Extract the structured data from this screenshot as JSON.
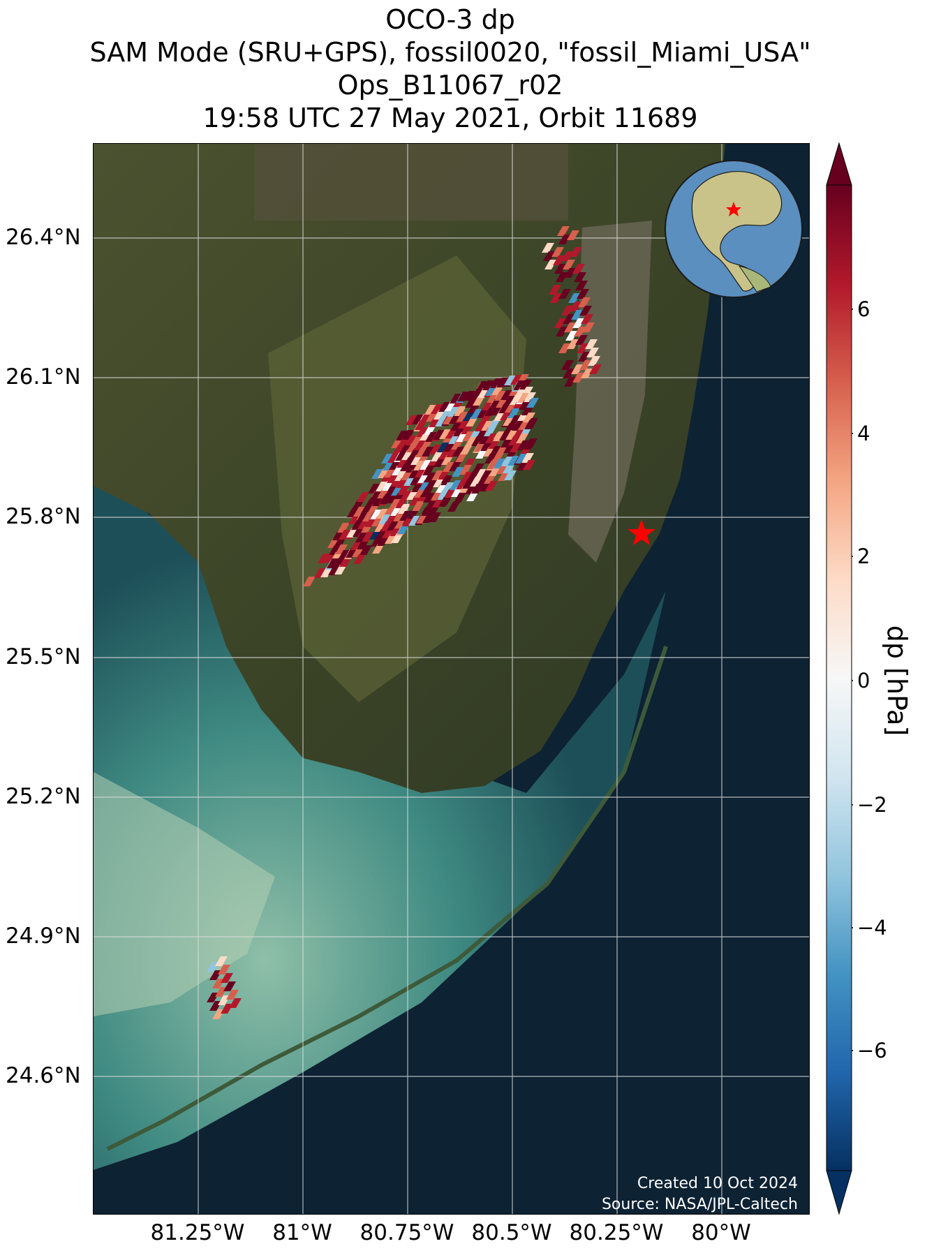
{
  "title": {
    "line1": "OCO-3 dp",
    "line2": "SAM Mode (SRU+GPS), fossil0020, \"fossil_Miami_USA\"",
    "line3": "Ops_B11067_r02",
    "line4": "19:58 UTC 27 May 2021, Orbit 11689"
  },
  "lat_labels": [
    "26.4°N",
    "26.1°N",
    "25.8°N",
    "25.5°N",
    "25.2°N",
    "24.9°N",
    "24.6°N"
  ],
  "lon_labels": [
    "81.25°W",
    "81°W",
    "80.75°W",
    "80.5°W",
    "80.25°W",
    "80°W"
  ],
  "colorbar": {
    "label": "dp [hPa]",
    "ticks": [
      "6",
      "4",
      "2",
      "0",
      "−2",
      "−4",
      "−6"
    ],
    "colors": [
      "#67001f",
      "#b2182b",
      "#d6604d",
      "#f4a582",
      "#fddbc7",
      "#f7f7f7",
      "#d1e5f0",
      "#92c5de",
      "#4393c3",
      "#2166ac",
      "#053061"
    ]
  },
  "credit": {
    "line1": "Created 10 Oct 2024",
    "line2": "Source: NASA/JPL-Caltech"
  },
  "target": {
    "name": "fossil_Miami_USA",
    "marker_color": "#ff0000"
  }
}
